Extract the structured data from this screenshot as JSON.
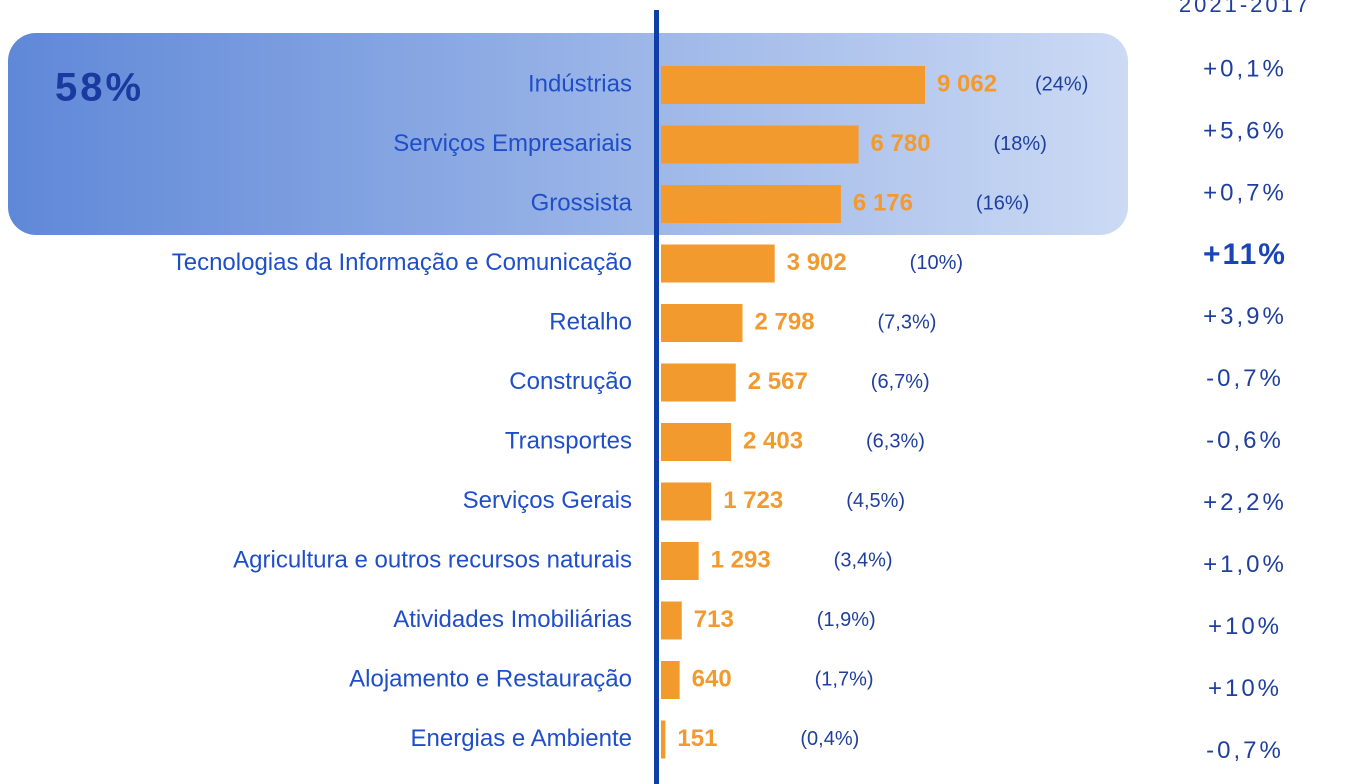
{
  "chart_data": {
    "type": "bar",
    "orientation": "horizontal",
    "color": "#f39a2e",
    "growth_header": "2021-2017",
    "highlight_label": "58%",
    "categories": [
      "Indústrias",
      "Serviços Empresariais",
      "Grossista",
      "Tecnologias da Informação e Comunicação",
      "Retalho",
      "Construção",
      "Transportes",
      "Serviços Gerais",
      "Agricultura e outros recursos naturais",
      "Atividades Imobiliárias",
      "Alojamento e Restauração",
      "Energias e Ambiente"
    ],
    "values": [
      9062,
      6780,
      6176,
      3902,
      2798,
      2567,
      2403,
      1723,
      1293,
      713,
      640,
      151
    ],
    "value_labels": [
      "9 062",
      "6 780",
      "6 176",
      "3 902",
      "2 798",
      "2 567",
      "2 403",
      "1 723",
      "1 293",
      "713",
      "640",
      "151"
    ],
    "share_labels": [
      "(24%)",
      "(18%)",
      "(16%)",
      "(10%)",
      "(7,3%)",
      "(6,7%)",
      "(6,3%)",
      "(4,5%)",
      "(3,4%)",
      "(1,9%)",
      "(1,7%)",
      "(0,4%)"
    ],
    "growth_labels": [
      "+0,1%",
      "+5,6%",
      "+0,7%",
      "+11%",
      "+3,9%",
      "-0,7%",
      "-0,6%",
      "+2,2%",
      "+1,0%",
      "+10%",
      "+10%",
      "-0,7%"
    ]
  }
}
